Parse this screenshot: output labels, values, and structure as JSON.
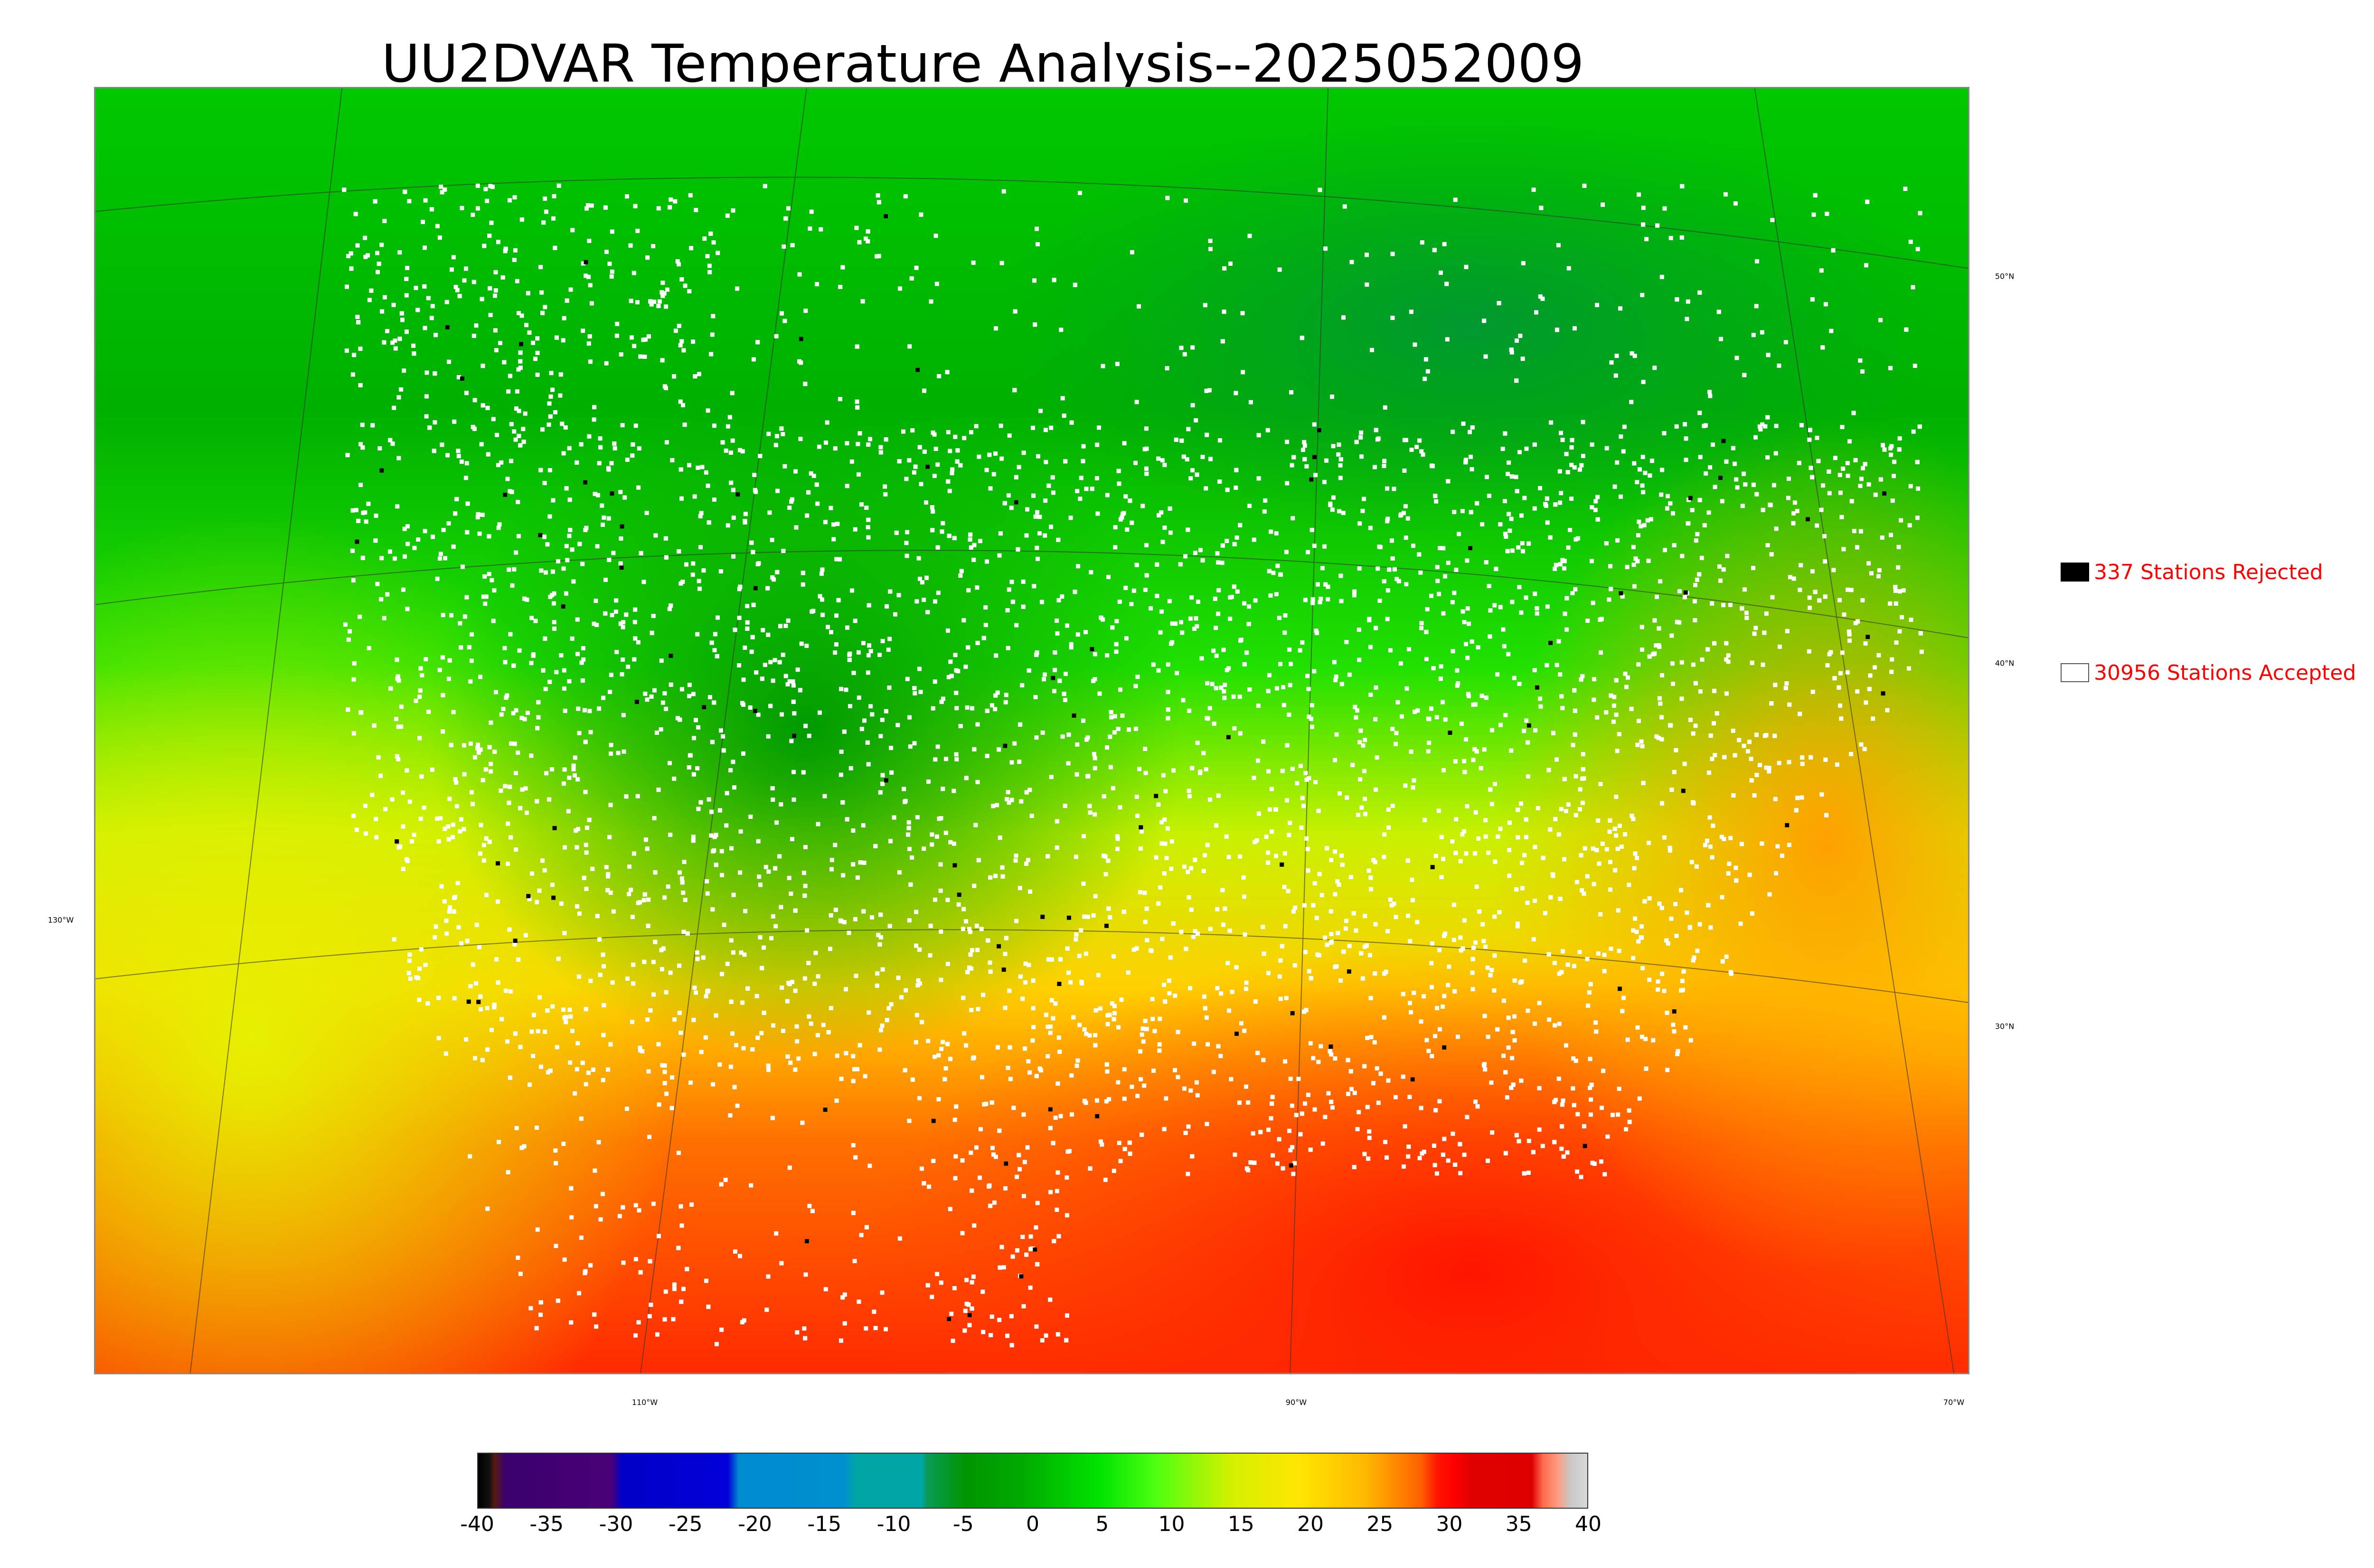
{
  "title": "UU2DVAR Temperature Analysis--2025052009",
  "map": {
    "lat_labels": [
      "50°N",
      "40°N",
      "30°N"
    ],
    "lon_labels": [
      "130°W",
      "110°W",
      "90°W",
      "70°W"
    ]
  },
  "legend": {
    "rejected": {
      "label": "337 Stations Rejected",
      "swatch_color": "#000000"
    },
    "accepted": {
      "label": "30956 Stations Accepted",
      "swatch_color": "#ffffff"
    },
    "text_color": "#ff0000"
  },
  "colorbar": {
    "min": -40,
    "max": 40,
    "tick_labels": [
      "-40",
      "-35",
      "-30",
      "-25",
      "-20",
      "-15",
      "-10",
      "-5",
      "0",
      "5",
      "10",
      "15",
      "20",
      "25",
      "30",
      "35",
      "40"
    ]
  },
  "colors": {
    "cold_green": "#00a000",
    "mild_green": "#00e000",
    "yellow": "#e8f000",
    "orange": "#ffa000",
    "red": "#ff2000",
    "station_accepted": "#ffffff",
    "station_rejected": "#000000"
  }
}
